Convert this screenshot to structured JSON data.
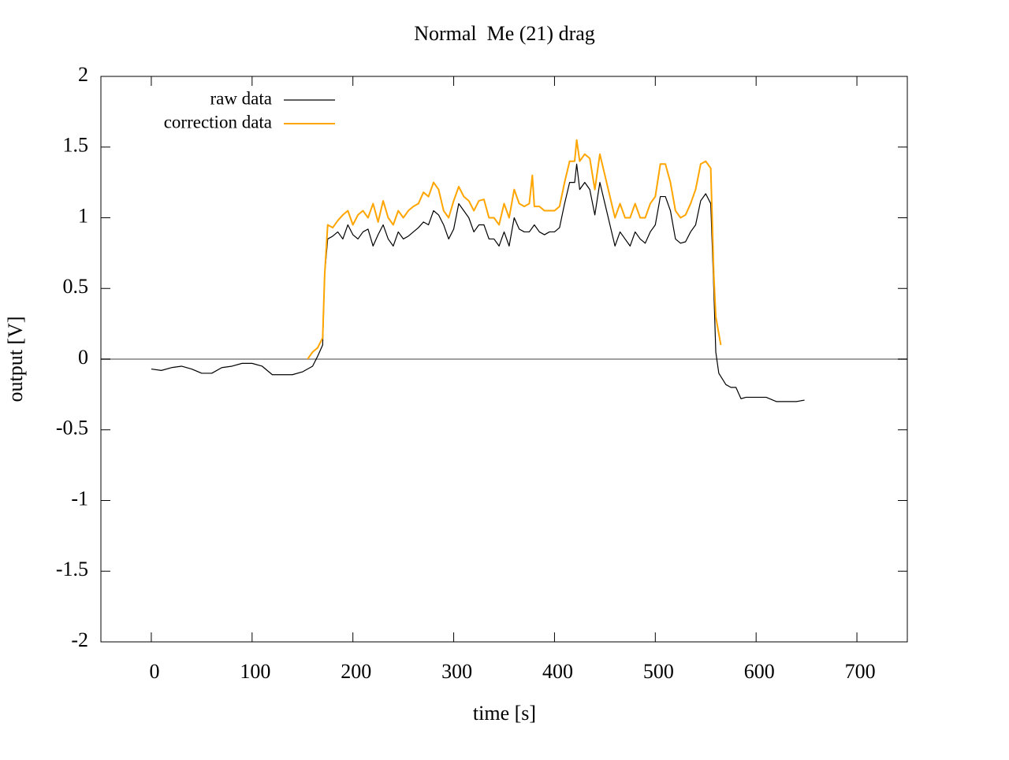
{
  "chart_data": {
    "type": "line",
    "title": "Normal  Me (21) drag",
    "xlabel": "time [s]",
    "ylabel": "output [V]",
    "xlim": [
      -50,
      750
    ],
    "xticks": [
      0,
      100,
      200,
      300,
      400,
      500,
      600,
      700
    ],
    "ylim": [
      -2,
      2
    ],
    "yticks": [
      -2,
      -1.5,
      -1,
      -0.5,
      0,
      0.5,
      1,
      1.5,
      2
    ],
    "legend": "top-left",
    "zero_line": true,
    "series": [
      {
        "name": "raw data",
        "color": "#000000",
        "x": [
          0,
          10,
          20,
          30,
          40,
          50,
          60,
          70,
          80,
          90,
          100,
          110,
          120,
          130,
          140,
          150,
          160,
          165,
          170,
          172,
          175,
          180,
          185,
          190,
          195,
          200,
          205,
          210,
          215,
          220,
          225,
          230,
          235,
          240,
          245,
          250,
          255,
          260,
          265,
          270,
          275,
          280,
          285,
          290,
          295,
          300,
          305,
          310,
          315,
          320,
          325,
          330,
          335,
          340,
          345,
          350,
          355,
          360,
          365,
          370,
          375,
          380,
          385,
          390,
          395,
          400,
          405,
          410,
          415,
          420,
          422,
          425,
          430,
          435,
          440,
          445,
          450,
          455,
          460,
          465,
          470,
          475,
          480,
          485,
          490,
          495,
          500,
          505,
          510,
          515,
          520,
          525,
          530,
          535,
          540,
          545,
          550,
          555,
          558,
          560,
          563,
          570,
          575,
          580,
          585,
          590,
          600,
          610,
          620,
          630,
          640,
          648
        ],
        "values": [
          -0.07,
          -0.08,
          -0.06,
          -0.05,
          -0.07,
          -0.1,
          -0.1,
          -0.06,
          -0.05,
          -0.03,
          -0.03,
          -0.05,
          -0.11,
          -0.11,
          -0.11,
          -0.09,
          -0.05,
          0.02,
          0.1,
          0.6,
          0.85,
          0.87,
          0.9,
          0.85,
          0.95,
          0.88,
          0.85,
          0.9,
          0.92,
          0.8,
          0.88,
          0.95,
          0.85,
          0.8,
          0.9,
          0.85,
          0.87,
          0.9,
          0.93,
          0.97,
          0.95,
          1.05,
          1.02,
          0.95,
          0.85,
          0.92,
          1.1,
          1.05,
          1.0,
          0.9,
          0.95,
          0.95,
          0.85,
          0.85,
          0.8,
          0.9,
          0.8,
          1.0,
          0.92,
          0.9,
          0.9,
          0.95,
          0.9,
          0.88,
          0.9,
          0.9,
          0.93,
          1.1,
          1.25,
          1.25,
          1.38,
          1.2,
          1.25,
          1.2,
          1.02,
          1.25,
          1.1,
          0.95,
          0.8,
          0.9,
          0.85,
          0.8,
          0.9,
          0.85,
          0.82,
          0.9,
          0.95,
          1.15,
          1.15,
          1.05,
          0.85,
          0.82,
          0.83,
          0.9,
          0.95,
          1.12,
          1.17,
          1.1,
          0.5,
          0.05,
          -0.1,
          -0.18,
          -0.2,
          -0.2,
          -0.28,
          -0.27,
          -0.27,
          -0.27,
          -0.3,
          -0.3,
          -0.3,
          -0.29
        ]
      },
      {
        "name": "correction data",
        "color": "#ffa500",
        "x": [
          155,
          160,
          165,
          170,
          172,
          175,
          180,
          185,
          190,
          195,
          200,
          205,
          210,
          215,
          220,
          225,
          230,
          235,
          240,
          245,
          250,
          255,
          260,
          265,
          270,
          275,
          280,
          285,
          290,
          295,
          300,
          305,
          310,
          315,
          320,
          325,
          330,
          335,
          340,
          345,
          350,
          355,
          360,
          365,
          370,
          375,
          378,
          380,
          385,
          390,
          395,
          400,
          405,
          410,
          415,
          420,
          422,
          425,
          430,
          435,
          440,
          445,
          450,
          455,
          460,
          465,
          470,
          475,
          480,
          485,
          490,
          495,
          500,
          505,
          510,
          515,
          520,
          525,
          530,
          535,
          540,
          545,
          550,
          555,
          558,
          560,
          565
        ],
        "values": [
          0.0,
          0.05,
          0.08,
          0.15,
          0.6,
          0.95,
          0.93,
          0.98,
          1.02,
          1.05,
          0.95,
          1.02,
          1.05,
          1.0,
          1.1,
          0.97,
          1.12,
          1.0,
          0.95,
          1.05,
          1.0,
          1.05,
          1.08,
          1.1,
          1.18,
          1.15,
          1.25,
          1.2,
          1.05,
          1.0,
          1.12,
          1.22,
          1.15,
          1.12,
          1.05,
          1.12,
          1.13,
          1.0,
          1.0,
          0.95,
          1.1,
          1.0,
          1.2,
          1.1,
          1.08,
          1.1,
          1.3,
          1.08,
          1.08,
          1.05,
          1.05,
          1.05,
          1.08,
          1.25,
          1.4,
          1.4,
          1.55,
          1.4,
          1.45,
          1.42,
          1.2,
          1.45,
          1.3,
          1.15,
          1.0,
          1.1,
          1.0,
          1.0,
          1.1,
          1.0,
          1.0,
          1.1,
          1.15,
          1.38,
          1.38,
          1.25,
          1.05,
          1.0,
          1.02,
          1.1,
          1.2,
          1.38,
          1.4,
          1.35,
          0.6,
          0.3,
          0.1
        ]
      }
    ]
  }
}
